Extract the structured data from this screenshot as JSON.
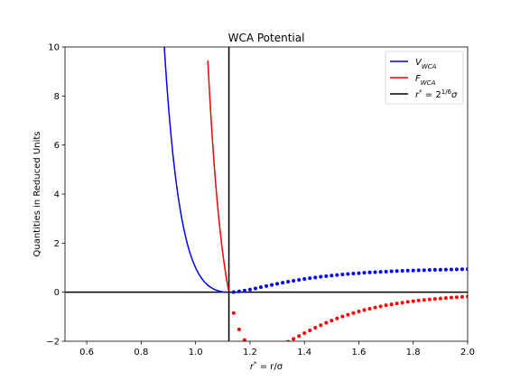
{
  "chart_data": {
    "type": "line",
    "title": "WCA Potential",
    "xlabel": {
      "var": "r",
      "sup": "*",
      "rest": " = r/σ"
    },
    "ylabel": "Quantities in Reduced Units",
    "xlim": [
      0.52,
      2.0
    ],
    "ylim": [
      -2,
      10
    ],
    "xticks": [
      "0.6",
      "0.8",
      "1.0",
      "1.2",
      "1.4",
      "1.6",
      "1.8",
      "2.0"
    ],
    "yticks": [
      "−2",
      "0",
      "2",
      "4",
      "6",
      "8",
      "10"
    ],
    "legend_position": "top-right",
    "cutoff_x": 1.122462,
    "colors": {
      "v": "#0000ff",
      "f": "#ff0000",
      "cutoff": "#000000"
    },
    "legend": [
      {
        "key": "v",
        "main": "V",
        "sub": "WCA"
      },
      {
        "key": "f",
        "main": "F",
        "sub": "WCA"
      },
      {
        "key": "cutoff",
        "main": "r",
        "sup": "*",
        "rest": " = 2",
        "sup2": "1/6",
        "rest2": "σ"
      }
    ],
    "series": [
      {
        "key": "v_line",
        "x_start": 0.885,
        "x_end": 1.1225,
        "step": 0.004
      },
      {
        "key": "f_line",
        "x_start": 1.045,
        "x_end": 1.1225,
        "step": 0.002
      },
      {
        "key": "v_dots",
        "x_start": 1.14,
        "x_end": 2.0,
        "step": 0.02
      },
      {
        "key": "f_dots",
        "x_start": 1.14,
        "x_end": 2.0,
        "step": 0.02
      }
    ]
  }
}
